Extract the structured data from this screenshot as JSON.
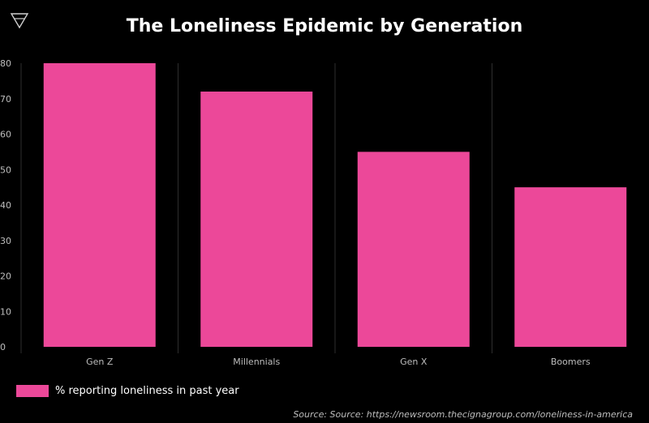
{
  "chart_data": {
    "type": "bar",
    "title": "The Loneliness Epidemic by Generation",
    "categories": [
      "Gen Z",
      "Millennials",
      "Gen X",
      "Boomers"
    ],
    "series": [
      {
        "name": "% reporting loneliness in past year",
        "values": [
          80,
          72,
          55,
          45
        ]
      }
    ],
    "ylim": [
      0,
      80
    ],
    "yticks": [
      0,
      10,
      20,
      30,
      40,
      50,
      60,
      70,
      80
    ],
    "xlabel": "",
    "ylabel": "",
    "grid": "vertical category separators",
    "legend_position": "bottom-left",
    "bar_color": "#ec4899",
    "source": "Source: Source: https://newsroom.thecignagroup.com/loneliness-in-america"
  }
}
